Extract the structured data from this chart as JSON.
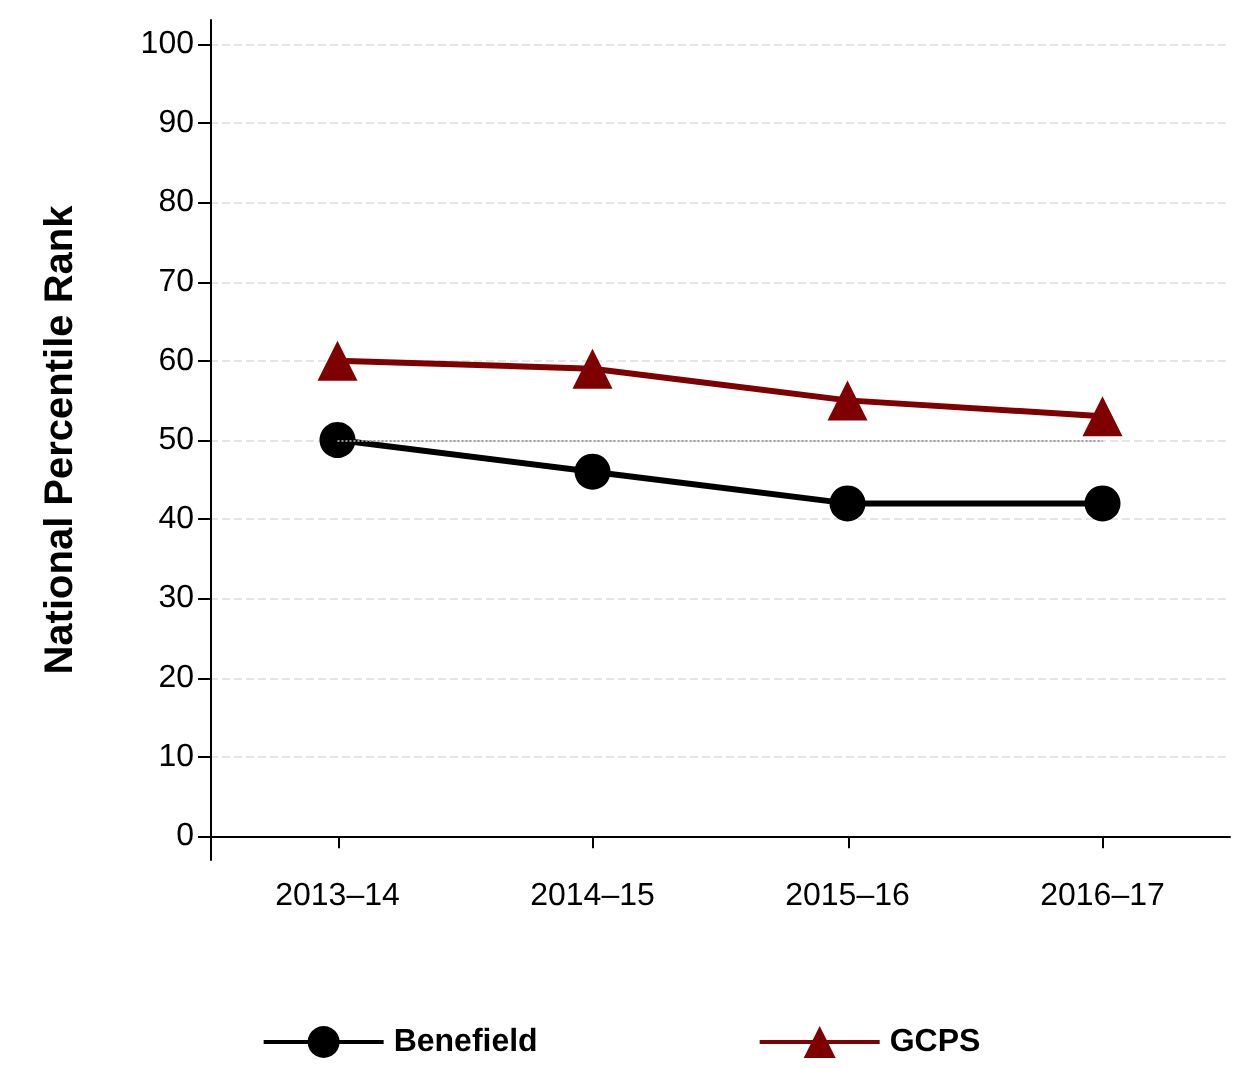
{
  "chart_data": {
    "type": "line",
    "ylabel": "National Percentile Rank",
    "categories": [
      "2013–14",
      "2014–15",
      "2015–16",
      "2016–17"
    ],
    "series": [
      {
        "name": "Benefield",
        "color": "#000000",
        "marker": "circle",
        "values": [
          50,
          46,
          42,
          42
        ]
      },
      {
        "name": "GCPS",
        "color": "#7f0000",
        "marker": "triangle",
        "values": [
          60,
          59,
          55,
          53
        ]
      }
    ],
    "ylim": [
      -3,
      103
    ],
    "yticks": [
      0,
      10,
      20,
      30,
      40,
      50,
      60,
      70,
      80,
      90,
      100
    ],
    "grid": "y",
    "legend": "bottom",
    "ref_lines": [
      {
        "axis": "y",
        "value": 50,
        "color": "#999999",
        "line_style": "dotted"
      }
    ]
  }
}
